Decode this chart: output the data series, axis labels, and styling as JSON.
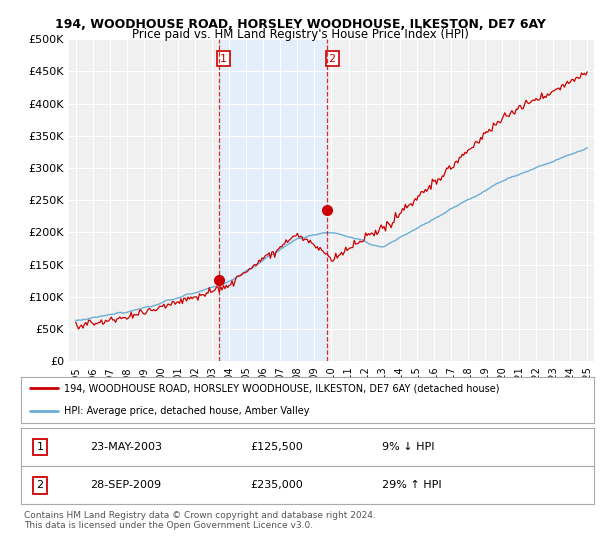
{
  "title1": "194, WOODHOUSE ROAD, HORSLEY WOODHOUSE, ILKESTON, DE7 6AY",
  "title2": "Price paid vs. HM Land Registry's House Price Index (HPI)",
  "ylabel_ticks": [
    "£0",
    "£50K",
    "£100K",
    "£150K",
    "£200K",
    "£250K",
    "£300K",
    "£350K",
    "£400K",
    "£450K",
    "£500K"
  ],
  "ytick_vals": [
    0,
    50000,
    100000,
    150000,
    200000,
    250000,
    300000,
    350000,
    400000,
    450000,
    500000
  ],
  "xlim_start": 1994.6,
  "xlim_end": 2025.4,
  "ylim_min": 0,
  "ylim_max": 500000,
  "hpi_color": "#6baed6",
  "price_color": "#cc0000",
  "sale1_year": 2003.38,
  "sale1_price": 125500,
  "sale2_year": 2009.74,
  "sale2_price": 235000,
  "legend_line1": "194, WOODHOUSE ROAD, HORSLEY WOODHOUSE, ILKESTON, DE7 6AY (detached house)",
  "legend_line2": "HPI: Average price, detached house, Amber Valley",
  "vline1_year": 2003.38,
  "vline2_year": 2009.74,
  "shade_color": "#ddeeff",
  "background_color": "#ffffff",
  "plot_bg_color": "#f0f0f0",
  "grid_color": "#ffffff",
  "footnote": "Contains HM Land Registry data © Crown copyright and database right 2024.\nThis data is licensed under the Open Government Licence v3.0."
}
